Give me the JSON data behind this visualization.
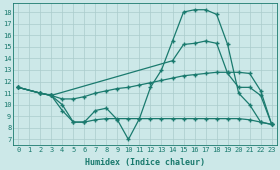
{
  "xlabel": "Humidex (Indice chaleur)",
  "bg_color": "#cce8e8",
  "grid_color": "#aacccc",
  "line_color": "#1a7a6e",
  "xlim": [
    -0.5,
    23.5
  ],
  "ylim": [
    6.5,
    18.8
  ],
  "xticks": [
    0,
    1,
    2,
    3,
    4,
    5,
    6,
    7,
    8,
    9,
    10,
    11,
    12,
    13,
    14,
    15,
    16,
    17,
    18,
    19,
    20,
    21,
    22,
    23
  ],
  "yticks": [
    7,
    8,
    9,
    10,
    11,
    12,
    13,
    14,
    15,
    16,
    17,
    18
  ],
  "line1_x": [
    0,
    2,
    3,
    4,
    5,
    6,
    7,
    8,
    9,
    10,
    11,
    12,
    13,
    14,
    15,
    16,
    17,
    18,
    19,
    20,
    21,
    22,
    23
  ],
  "line1_y": [
    11.5,
    11.0,
    10.8,
    10.0,
    8.5,
    8.5,
    9.5,
    9.7,
    8.7,
    7.0,
    8.8,
    11.5,
    13.0,
    15.5,
    18.0,
    18.2,
    18.2,
    17.8,
    15.2,
    11.0,
    10.0,
    8.5,
    8.3
  ],
  "line2_x": [
    0,
    2,
    3,
    14,
    15,
    16,
    17,
    18,
    19,
    20,
    21,
    22,
    23
  ],
  "line2_y": [
    11.5,
    11.0,
    10.8,
    13.8,
    15.2,
    15.3,
    15.5,
    15.3,
    12.7,
    11.5,
    11.5,
    10.8,
    8.3
  ],
  "line3_x": [
    0,
    2,
    3,
    4,
    5,
    6,
    7,
    8,
    9,
    10,
    11,
    12,
    13,
    14,
    15,
    16,
    17,
    18,
    19,
    20,
    21,
    22,
    23
  ],
  "line3_y": [
    11.5,
    11.0,
    10.8,
    10.5,
    10.5,
    10.7,
    11.0,
    11.2,
    11.4,
    11.5,
    11.7,
    11.9,
    12.1,
    12.3,
    12.5,
    12.6,
    12.7,
    12.8,
    12.8,
    12.8,
    12.7,
    11.2,
    8.3
  ],
  "line4_x": [
    0,
    2,
    3,
    4,
    5,
    6,
    7,
    8,
    9,
    10,
    11,
    12,
    13,
    14,
    15,
    16,
    17,
    18,
    19,
    20,
    21,
    22,
    23
  ],
  "line4_y": [
    11.5,
    11.0,
    10.8,
    9.5,
    8.5,
    8.5,
    8.7,
    8.8,
    8.8,
    8.8,
    8.8,
    8.8,
    8.8,
    8.8,
    8.8,
    8.8,
    8.8,
    8.8,
    8.8,
    8.8,
    8.7,
    8.5,
    8.3
  ]
}
